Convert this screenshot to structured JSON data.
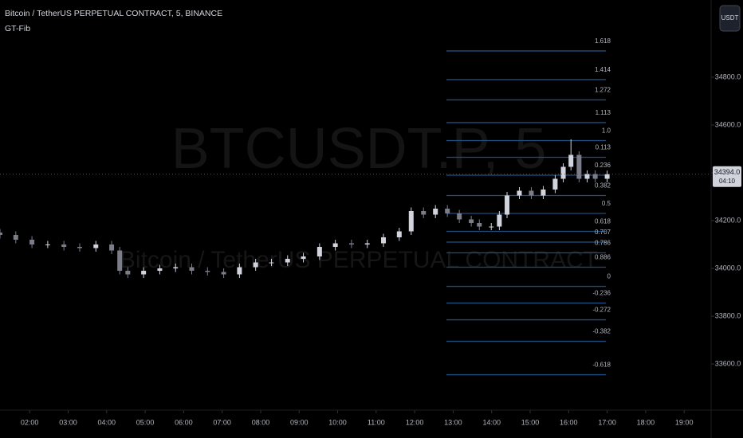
{
  "chart_data": {
    "type": "candlestick",
    "title": "Bitcoin / TetherUS PERPETUAL CONTRACT, 5, BINANCE",
    "indicator": "GT-Fib",
    "watermark": "BTCUSDT.P, 5",
    "watermark_subtitle": "Bitcoin / TetherUS PERPETUAL CONTRACT",
    "currency_button": "USDT",
    "up_color": "#d1d4dc",
    "down_color": "#7b7e88",
    "fib_color": "#1f4e7e",
    "xlim": [
      1.23,
      19.7
    ],
    "ylim": [
      33407,
      35123
    ],
    "xticks": [
      {
        "value": 2,
        "label": "02:00"
      },
      {
        "value": 3,
        "label": "03:00"
      },
      {
        "value": 4,
        "label": "04:00"
      },
      {
        "value": 5,
        "label": "05:00"
      },
      {
        "value": 6,
        "label": "06:00"
      },
      {
        "value": 7,
        "label": "07:00"
      },
      {
        "value": 8,
        "label": "08:00"
      },
      {
        "value": 9,
        "label": "09:00"
      },
      {
        "value": 10,
        "label": "10:00"
      },
      {
        "value": 11,
        "label": "11:00"
      },
      {
        "value": 12,
        "label": "12:00"
      },
      {
        "value": 13,
        "label": "13:00"
      },
      {
        "value": 14,
        "label": "14:00"
      },
      {
        "value": 15,
        "label": "15:00"
      },
      {
        "value": 16,
        "label": "16:00"
      },
      {
        "value": 17,
        "label": "17:00"
      },
      {
        "value": 18,
        "label": "18:00"
      },
      {
        "value": 19,
        "label": "19:00"
      }
    ],
    "yticks": [
      {
        "value": 33600,
        "label": "33600.0"
      },
      {
        "value": 33800,
        "label": "33800.0"
      },
      {
        "value": 34000,
        "label": "34000.0"
      },
      {
        "value": 34200,
        "label": "34200.0"
      },
      {
        "value": 34400,
        "label": "34400.0"
      },
      {
        "value": 34600,
        "label": "34600.0"
      },
      {
        "value": 34800,
        "label": "34800.0"
      }
    ],
    "last_price": {
      "value": 34394,
      "label": "34394.0"
    },
    "countdown": "04:10",
    "x": [
      1.23,
      1.64,
      2.06,
      2.47,
      2.89,
      3.3,
      3.72,
      4.13,
      4.34,
      4.55,
      4.96,
      5.38,
      5.79,
      6.21,
      6.62,
      7.04,
      7.45,
      7.87,
      8.28,
      8.7,
      9.11,
      9.53,
      9.94,
      10.36,
      10.77,
      11.19,
      11.6,
      11.91,
      12.23,
      12.54,
      12.85,
      13.16,
      13.47,
      13.68,
      13.99,
      14.2,
      14.4,
      14.72,
      15.03,
      15.34,
      15.65,
      15.86,
      16.06,
      16.27,
      16.48,
      16.69,
      17.0
    ],
    "open": [
      34150,
      34140,
      34120,
      34100,
      34100,
      34090,
      34085,
      34100,
      34075,
      33990,
      33975,
      33990,
      34000,
      34005,
      33990,
      33985,
      33975,
      34005,
      34025,
      34025,
      34040,
      34050,
      34090,
      34105,
      34100,
      34105,
      34130,
      34155,
      34240,
      34225,
      34250,
      34230,
      34205,
      34190,
      34175,
      34175,
      34225,
      34305,
      34325,
      34305,
      34330,
      34375,
      34425,
      34475,
      34375,
      34395,
      34375
    ],
    "high": [
      34165,
      34155,
      34135,
      34115,
      34115,
      34105,
      34115,
      34115,
      34090,
      34005,
      34005,
      34015,
      34020,
      34020,
      34005,
      34000,
      34020,
      34040,
      34040,
      34055,
      34065,
      34105,
      34120,
      34120,
      34120,
      34145,
      34170,
      34255,
      34255,
      34265,
      34265,
      34245,
      34220,
      34205,
      34190,
      34240,
      34320,
      34340,
      34340,
      34345,
      34390,
      34440,
      34540,
      34490,
      34410,
      34410,
      34409
    ],
    "low": [
      34125,
      34105,
      34085,
      34085,
      34075,
      34070,
      34070,
      34060,
      33975,
      33960,
      33960,
      33975,
      33985,
      33975,
      33970,
      33960,
      33960,
      33990,
      34010,
      34010,
      34025,
      34035,
      34075,
      34085,
      34085,
      34090,
      34115,
      34140,
      34210,
      34210,
      34215,
      34190,
      34175,
      34160,
      34160,
      34160,
      34210,
      34290,
      34290,
      34290,
      34315,
      34360,
      34410,
      34360,
      34360,
      34360,
      34360
    ],
    "close": [
      34140,
      34120,
      34100,
      34100,
      34090,
      34085,
      34100,
      34075,
      33990,
      33975,
      33990,
      34000,
      34005,
      33990,
      33985,
      33975,
      34005,
      34025,
      34025,
      34040,
      34050,
      34090,
      34105,
      34100,
      34105,
      34130,
      34155,
      34240,
      34225,
      34250,
      34230,
      34205,
      34190,
      34175,
      34175,
      34225,
      34305,
      34325,
      34305,
      34330,
      34375,
      34425,
      34475,
      34375,
      34395,
      34375,
      34394
    ],
    "fib_levels": [
      {
        "label": "1.618",
        "price": 34910
      },
      {
        "label": "1.414",
        "price": 34790
      },
      {
        "label": "1.272",
        "price": 34705
      },
      {
        "label": "1.113",
        "price": 34610
      },
      {
        "label": "1.0",
        "price": 34535
      },
      {
        "label": "0.113",
        "price": 34465
      },
      {
        "label": "0.236",
        "price": 34390
      },
      {
        "label": "0.382",
        "price": 34305
      },
      {
        "label": "0.5",
        "price": 34230
      },
      {
        "label": "0.618",
        "price": 34155
      },
      {
        "label": "0.707",
        "price": 34110
      },
      {
        "label": "0.786",
        "price": 34065
      },
      {
        "label": "0.886",
        "price": 34005
      },
      {
        "label": "0",
        "price": 33925
      },
      {
        "label": "-0.236",
        "price": 33855
      },
      {
        "label": "-0.272",
        "price": 33785
      },
      {
        "label": "-0.382",
        "price": 33695
      },
      {
        "label": "-0.618",
        "price": 33555
      }
    ]
  }
}
